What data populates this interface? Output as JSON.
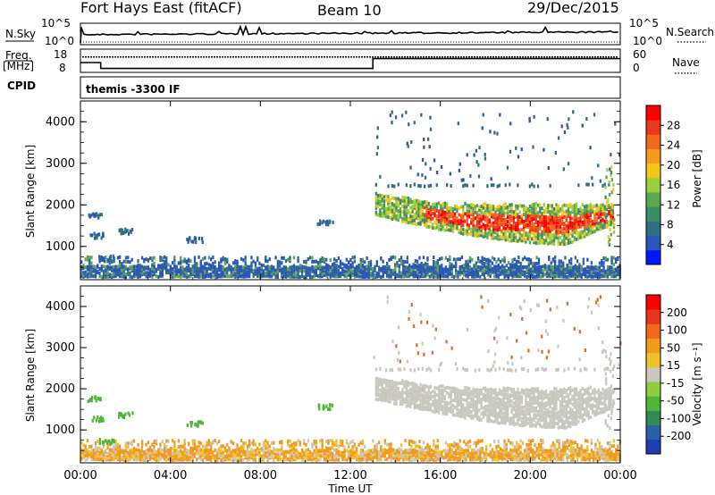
{
  "header": {
    "station": "Fort Hays East (fitACF)",
    "beam": "Beam 10",
    "date": "29/Dec/2015"
  },
  "aux_panels": {
    "nsky_label": "N.Sky",
    "nsearch_label": "N.Search",
    "freq_label": "Freq.",
    "freq_unit": "[MHz]",
    "nave_label": "Nave",
    "cpid_label": "CPID",
    "cpid_text": "themis -3300 IF",
    "nsky_ticks": [
      "10^5",
      "10^0"
    ],
    "nsearch_ticks": [
      "10^5",
      "10^0"
    ],
    "freq_ticks": [
      "18",
      "8"
    ],
    "nave_ticks": [
      "60",
      "0"
    ]
  },
  "colors": {
    "power_scale": [
      "#0015ff",
      "#2a55ba",
      "#2f6f86",
      "#3a8e64",
      "#5fa64e",
      "#9bcf3a",
      "#f5c51b",
      "#f59a1d",
      "#f06a1e",
      "#e83a1c",
      "#ff0000"
    ],
    "velocity_scale": [
      "#1e3fb3",
      "#2b5fa8",
      "#2f8a56",
      "#4fb63a",
      "#8fcf3f",
      "#c8c8c0",
      "#f1c12b",
      "#f19a1f",
      "#ee6a1e",
      "#e8361a",
      "#ff0000"
    ],
    "ground_scatter": "#c8c8c0"
  },
  "chart_data": [
    {
      "type": "heatmap",
      "name": "power",
      "ylabel": "Slant Range [km]",
      "y_ticks": [
        1000,
        2000,
        3000,
        4000
      ],
      "ylim": [
        200,
        4500
      ],
      "colorbar_label": "Power [dB]",
      "colorbar_ticks": [
        4,
        8,
        12,
        16,
        20,
        24,
        28
      ],
      "colorbar_range": [
        0,
        30
      ]
    },
    {
      "type": "heatmap",
      "name": "velocity",
      "xlabel": "Time UT",
      "ylabel": "Slant Range [km]",
      "x_ticks": [
        "00:00",
        "04:00",
        "08:00",
        "12:00",
        "16:00",
        "20:00",
        "00:00"
      ],
      "y_ticks": [
        1000,
        2000,
        3000,
        4000
      ],
      "ylim": [
        200,
        4500
      ],
      "colorbar_label": "Velocity [m s⁻¹]",
      "colorbar_ticks": [
        "200",
        "100",
        "50",
        "15",
        "-15",
        "-50",
        "-100",
        "-200"
      ]
    },
    {
      "type": "line",
      "name": "freq_nave",
      "freq_steps": [
        {
          "from": 0.0,
          "to": 0.9,
          "value": 13
        },
        {
          "from": 0.9,
          "to": 13.0,
          "value": 10
        },
        {
          "from": 13.0,
          "to": 24.0,
          "value": 15
        }
      ],
      "nave_level": 47
    }
  ]
}
